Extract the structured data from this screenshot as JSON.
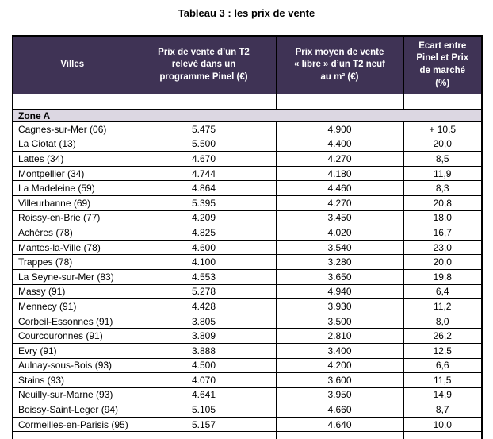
{
  "title": "Tableau 3 : les prix de vente",
  "table": {
    "columns": [
      {
        "label": "Villes"
      },
      {
        "label": "Prix de vente d’un T2\nrelevé dans un\nprogramme Pinel (€)"
      },
      {
        "label": "Prix moyen de vente\n« libre » d’un T2 neuf\nau m² (€)"
      },
      {
        "label": "Ecart entre\nPinel et Prix\nde marché\n(%)"
      }
    ],
    "section_label": "Zone A",
    "rows": [
      [
        "Cagnes-sur-Mer (06)",
        "5.475",
        "4.900",
        "+ 10,5"
      ],
      [
        "La Ciotat (13)",
        "5.500",
        "4.400",
        "20,0"
      ],
      [
        "Lattes (34)",
        "4.670",
        "4.270",
        "8,5"
      ],
      [
        "Montpellier (34)",
        "4.744",
        "4.180",
        "11,9"
      ],
      [
        "La Madeleine (59)",
        "4.864",
        "4.460",
        "8,3"
      ],
      [
        "Villeurbanne (69)",
        "5.395",
        "4.270",
        "20,8"
      ],
      [
        "Roissy-en-Brie (77)",
        "4.209",
        "3.450",
        "18,0"
      ],
      [
        "Achères (78)",
        "4.825",
        "4.020",
        "16,7"
      ],
      [
        "Mantes-la-Ville (78)",
        "4.600",
        "3.540",
        "23,0"
      ],
      [
        "Trappes (78)",
        "4.100",
        "3.280",
        "20,0"
      ],
      [
        "La Seyne-sur-Mer (83)",
        "4.553",
        "3.650",
        "19,8"
      ],
      [
        "Massy (91)",
        "5.278",
        "4.940",
        "6,4"
      ],
      [
        "Mennecy (91)",
        "4.428",
        "3.930",
        "11,2"
      ],
      [
        "Corbeil-Essonnes (91)",
        "3.805",
        "3.500",
        "8,0"
      ],
      [
        "Courcouronnes (91)",
        "3.809",
        "2.810",
        "26,2"
      ],
      [
        "Evry (91)",
        "3.888",
        "3.400",
        "12,5"
      ],
      [
        "Aulnay-sous-Bois (93)",
        "4.500",
        "4.200",
        "6,6"
      ],
      [
        "Stains (93)",
        "4.070",
        "3.600",
        "11,5"
      ],
      [
        "Neuilly-sur-Marne (93)",
        "4.641",
        "3.950",
        "14,9"
      ],
      [
        "Boissy-Saint-Leger (94)",
        "5.105",
        "4.660",
        "8,7"
      ],
      [
        "Cormeilles-en-Parisis (95)",
        "5.157",
        "4.640",
        "10,0"
      ]
    ],
    "colors": {
      "header_bg": "#3F3355",
      "header_text": "#FFFFFF",
      "section_bg": "#DCD7E2",
      "border": "#000000",
      "text": "#000000"
    }
  }
}
